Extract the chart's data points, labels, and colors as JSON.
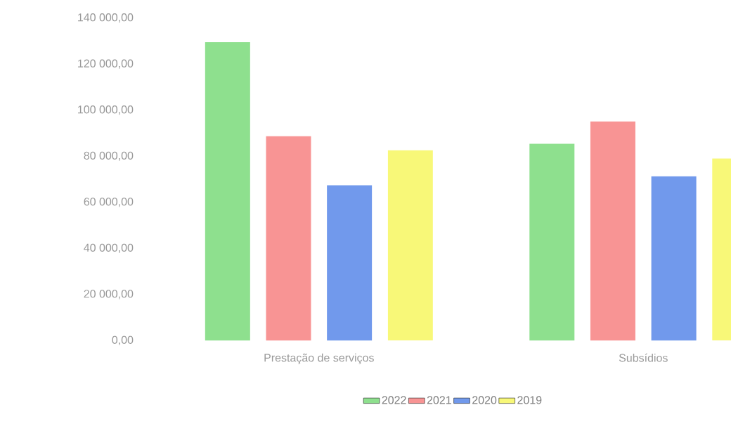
{
  "chart_data": {
    "type": "bar",
    "categories": [
      "Prestação de serviços",
      "Subsídios"
    ],
    "series": [
      {
        "name": "2022",
        "color": "#8ee08e",
        "values": [
          129500,
          85400
        ]
      },
      {
        "name": "2021",
        "color": "#f89494",
        "values": [
          88700,
          95100
        ]
      },
      {
        "name": "2020",
        "color": "#7199ec",
        "values": [
          67400,
          71300
        ]
      },
      {
        "name": "2019",
        "color": "#f8f878",
        "values": [
          82600,
          79000
        ]
      }
    ],
    "ylim": [
      0,
      140000
    ],
    "yticks": [
      {
        "value": 0,
        "label": "0,00"
      },
      {
        "value": 20000,
        "label": "20 000,00"
      },
      {
        "value": 40000,
        "label": "40 000,00"
      },
      {
        "value": 60000,
        "label": "60 000,00"
      },
      {
        "value": 80000,
        "label": "80 000,00"
      },
      {
        "value": 100000,
        "label": "100 000,00"
      },
      {
        "value": 120000,
        "label": "120 000,00"
      },
      {
        "value": 140000,
        "label": "140 000,00"
      }
    ],
    "grid": false,
    "legend": "bottom"
  }
}
